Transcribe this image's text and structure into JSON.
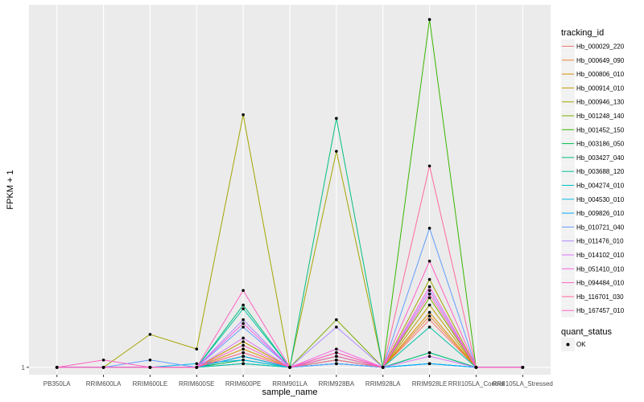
{
  "chart_data": {
    "type": "line",
    "xlabel": "sample_name",
    "ylabel": "FPKM + 1",
    "categories": [
      "PB350LA",
      "RRIM600LA",
      "RRIM600LE",
      "RRIM600SE",
      "RRIM600PE",
      "RRIM901LA",
      "RRIM928BA",
      "RRIM928LA",
      "RRIM928LE",
      "RRII105LA_Control",
      "RRII105LA_Stressed"
    ],
    "y_ticks": [
      {
        "value": 1,
        "label": "1"
      }
    ],
    "ylim": [
      -1,
      100
    ],
    "legend": {
      "title": "tracking_id",
      "position": "right"
    },
    "series": [
      {
        "name": "Hb_000029_220",
        "color": "#F8766D",
        "values": [
          1,
          1,
          1,
          1,
          4,
          1,
          3,
          1,
          14,
          1,
          1
        ]
      },
      {
        "name": "Hb_000649_090",
        "color": "#EA8331",
        "values": [
          1,
          1,
          1,
          1,
          5,
          1,
          4,
          1,
          15,
          1,
          1
        ]
      },
      {
        "name": "Hb_000806_010",
        "color": "#D89000",
        "values": [
          1,
          1,
          1,
          1,
          6,
          1,
          5,
          1,
          16,
          1,
          1
        ]
      },
      {
        "name": "Hb_000914_010",
        "color": "#C09B00",
        "values": [
          1,
          1,
          1,
          1,
          8,
          1,
          3,
          1,
          18,
          1,
          1
        ]
      },
      {
        "name": "Hb_000946_130",
        "color": "#A3A500",
        "values": [
          1,
          1,
          10,
          6,
          70,
          1,
          60,
          1,
          25,
          1,
          1
        ]
      },
      {
        "name": "Hb_001248_140",
        "color": "#7CAE00",
        "values": [
          1,
          1,
          1,
          1,
          4,
          1,
          14,
          1,
          20,
          1,
          1
        ]
      },
      {
        "name": "Hb_001452_150",
        "color": "#39B600",
        "values": [
          1,
          1,
          1,
          1,
          2,
          1,
          2,
          1,
          96,
          1,
          1
        ]
      },
      {
        "name": "Hb_003186_050",
        "color": "#00BB4E",
        "values": [
          1,
          1,
          1,
          1,
          3,
          1,
          4,
          1,
          5,
          1,
          1
        ]
      },
      {
        "name": "Hb_003427_040",
        "color": "#00BF7D",
        "values": [
          1,
          1,
          1,
          1,
          18,
          1,
          69,
          1,
          5,
          1,
          1
        ]
      },
      {
        "name": "Hb_003688_120",
        "color": "#00C1A3",
        "values": [
          1,
          1,
          1,
          1,
          17,
          1,
          3,
          1,
          12,
          1,
          1
        ]
      },
      {
        "name": "Hb_004274_010",
        "color": "#00BFC4",
        "values": [
          1,
          1,
          1,
          1,
          2,
          1,
          2,
          1,
          2,
          1,
          1
        ]
      },
      {
        "name": "Hb_004530_010",
        "color": "#00B8E7",
        "values": [
          1,
          1,
          1,
          2,
          3,
          1,
          2,
          1,
          2,
          1,
          1
        ]
      },
      {
        "name": "Hb_009826_010",
        "color": "#00A9FF",
        "values": [
          1,
          1,
          1,
          1,
          4,
          1,
          2,
          1,
          2,
          1,
          1
        ]
      },
      {
        "name": "Hb_010721_040",
        "color": "#619CFF",
        "values": [
          1,
          1,
          3,
          1,
          12,
          1,
          2,
          1,
          39,
          1,
          1
        ]
      },
      {
        "name": "Hb_011476_010",
        "color": "#AE87FF",
        "values": [
          1,
          1,
          1,
          1,
          14,
          1,
          12,
          1,
          22,
          1,
          1
        ]
      },
      {
        "name": "Hb_014102_010",
        "color": "#DB72FB",
        "values": [
          1,
          1,
          1,
          1,
          9,
          1,
          5,
          1,
          4,
          1,
          1
        ]
      },
      {
        "name": "Hb_051410_010",
        "color": "#F564E3",
        "values": [
          1,
          1,
          1,
          1,
          13,
          1,
          6,
          1,
          23,
          1,
          1
        ]
      },
      {
        "name": "Hb_094484_010",
        "color": "#FF61C3",
        "values": [
          1,
          3,
          1,
          1,
          7,
          1,
          4,
          1,
          30,
          1,
          1
        ]
      },
      {
        "name": "Hb_116701_030",
        "color": "#FF699C",
        "values": [
          1,
          1,
          1,
          1,
          5,
          1,
          3,
          1,
          56,
          1,
          1
        ]
      },
      {
        "name": "Hb_167457_010",
        "color": "#FF61C3",
        "values": [
          1,
          1,
          1,
          1,
          22,
          1,
          5,
          1,
          21,
          1,
          1
        ]
      }
    ],
    "shape_legend": {
      "title": "quant_status",
      "label": "OK"
    }
  }
}
